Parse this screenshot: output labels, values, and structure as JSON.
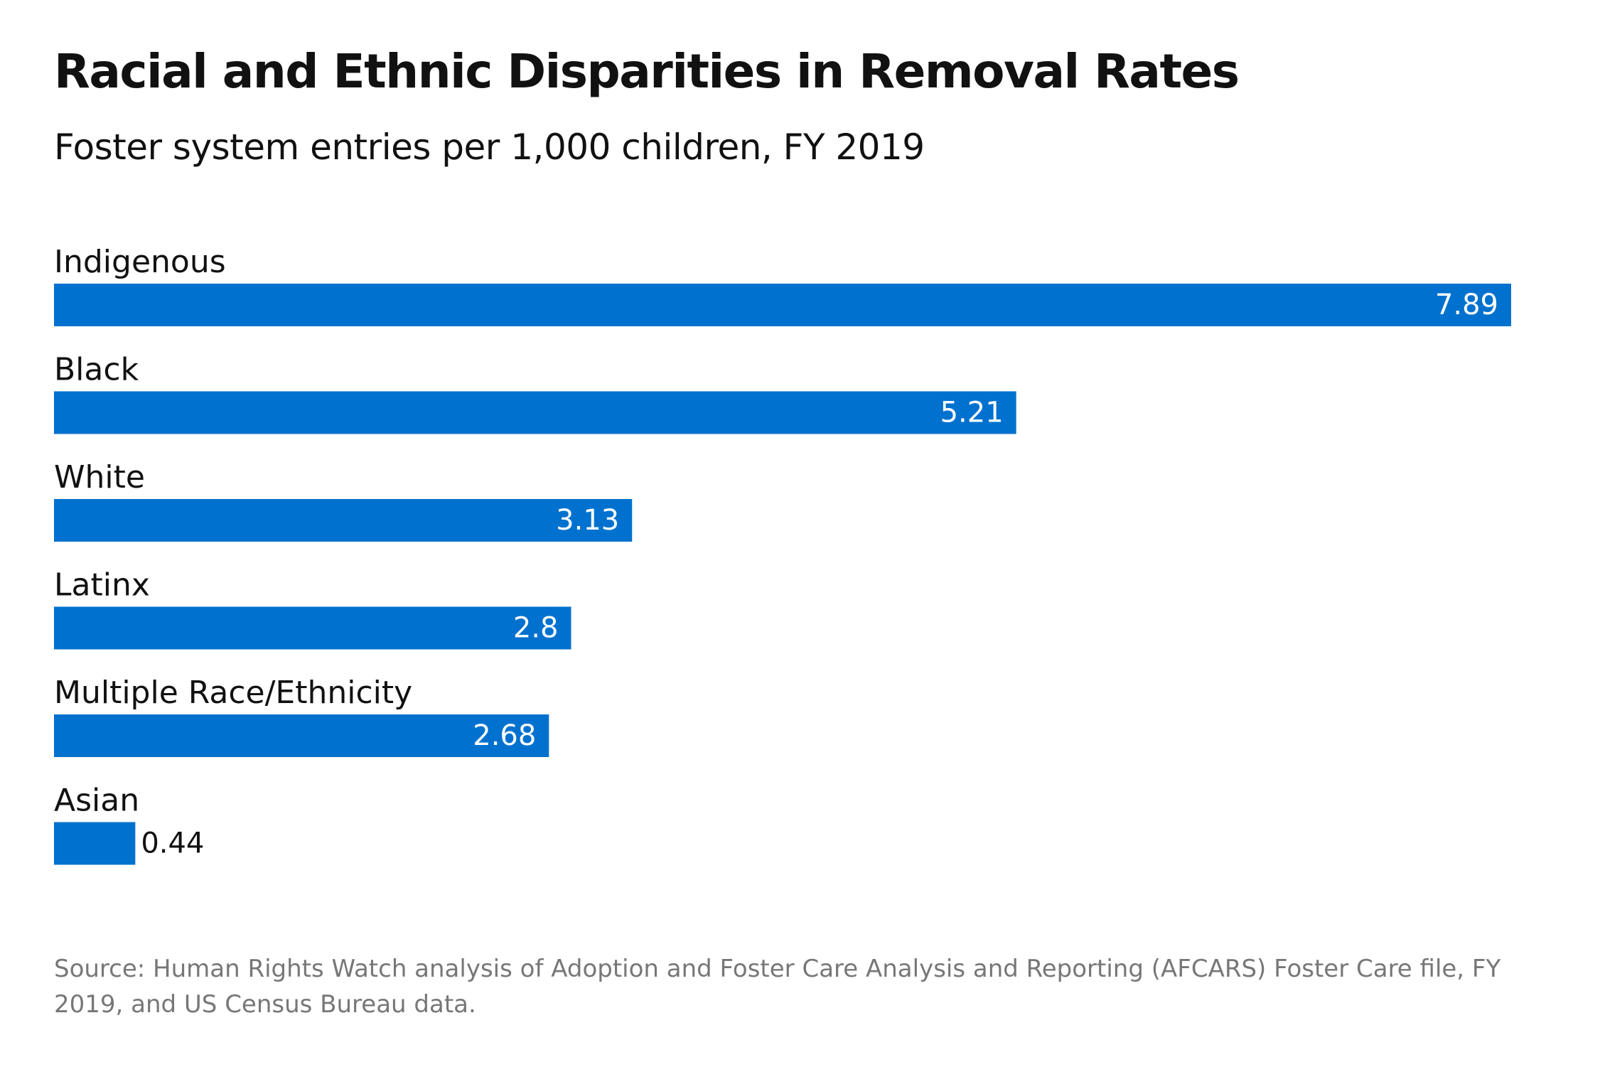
{
  "title": "Racial and Ethnic Disparities in Removal Rates",
  "subtitle": "Foster system entries per 1,000 children, FY 2019",
  "source": "Source: Human Rights Watch analysis of Adoption and Foster Care Analysis and Reporting (AFCARS) Foster Care file, FY 2019, and US Census Bureau data.",
  "colors": {
    "bar": "#0071CE",
    "label_inside": "#ffffff",
    "label_outside": "#111111"
  },
  "chart_data": {
    "type": "bar",
    "orientation": "horizontal",
    "title": "Racial and Ethnic Disparities in Removal Rates",
    "subtitle": "Foster system entries per 1,000 children, FY 2019",
    "xlabel": "",
    "ylabel": "",
    "xlim": [
      0,
      7.89
    ],
    "grid": false,
    "categories": [
      "Indigenous",
      "Black",
      "White",
      "Latinx",
      "Multiple Race/Ethnicity",
      "Asian"
    ],
    "values": [
      7.89,
      5.21,
      3.13,
      2.8,
      2.68,
      0.44
    ],
    "value_labels": [
      "7.89",
      "5.21",
      "3.13",
      "2.8",
      "2.68",
      "0.44"
    ]
  }
}
